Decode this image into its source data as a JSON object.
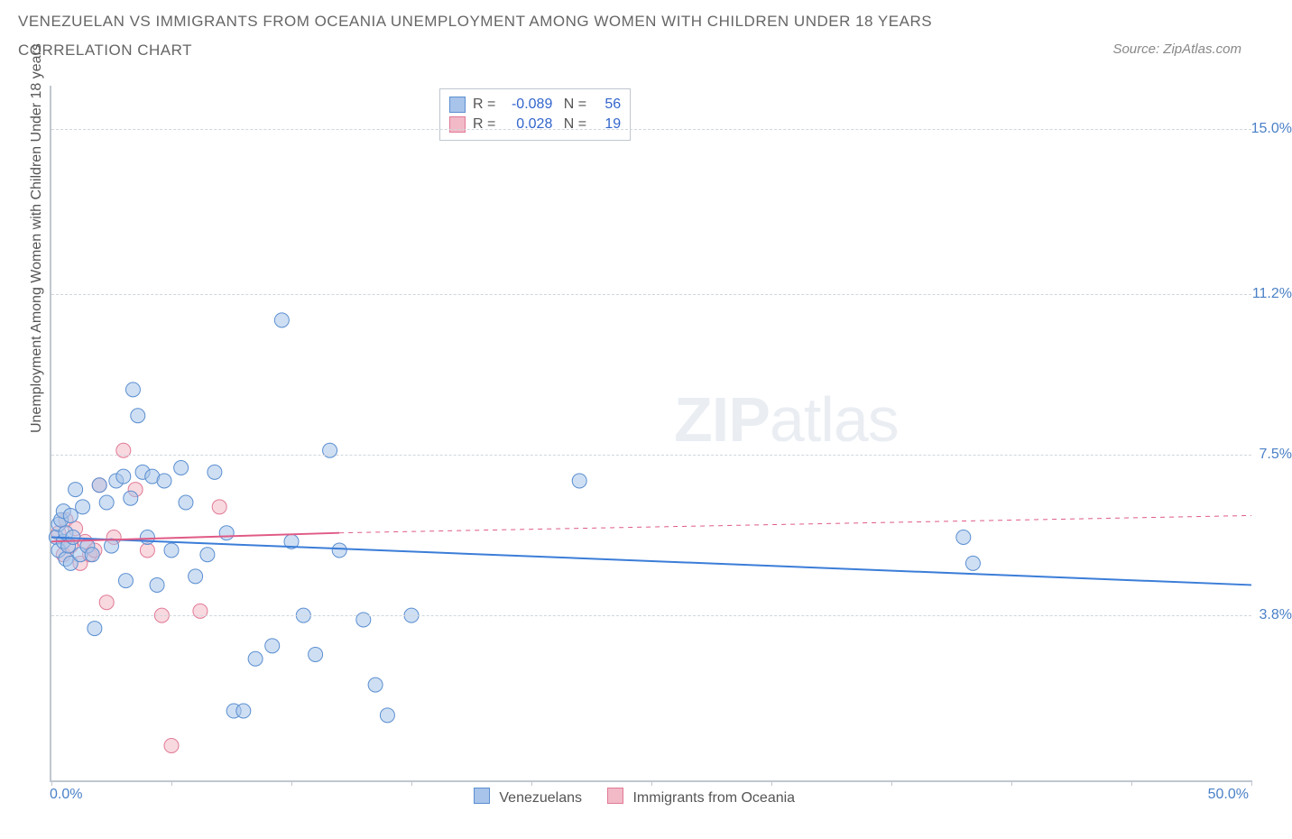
{
  "title_main": "VENEZUELAN VS IMMIGRANTS FROM OCEANIA UNEMPLOYMENT AMONG WOMEN WITH CHILDREN UNDER 18 YEARS",
  "title_sub": "CORRELATION CHART",
  "source": "Source: ZipAtlas.com",
  "ylabel": "Unemployment Among Women with Children Under 18 years",
  "axes": {
    "xmin": 0.0,
    "xmax": 50.0,
    "ymin": 0.0,
    "ymax": 16.0,
    "xticks": [
      0.0,
      5.0,
      10.0,
      15.0,
      20.0,
      25.0,
      30.0,
      35.0,
      40.0,
      45.0,
      50.0
    ],
    "yticks": [
      3.8,
      7.5,
      11.2,
      15.0
    ],
    "xmin_label": "0.0%",
    "xmax_label": "50.0%",
    "ytick_labels": [
      "3.8%",
      "7.5%",
      "11.2%",
      "15.0%"
    ]
  },
  "style": {
    "bg": "#ffffff",
    "grid_color": "#d0d6dc",
    "axis_color": "#bfc7cf",
    "tick_text_color": "#4a80c7",
    "label_color": "#555555",
    "title_color": "#666666",
    "marker_radius": 8,
    "marker_opacity": 0.55,
    "line_width": 2
  },
  "series": {
    "venezuelans": {
      "label": "Venezuelans",
      "fill": "#a8c4ea",
      "stroke": "#5b8fd1",
      "line_color": "#3b7dd8",
      "r": -0.089,
      "n": 56,
      "trend": {
        "x1": 0.0,
        "y1": 5.6,
        "x2": 50.0,
        "y2": 4.5
      },
      "points": [
        [
          0.2,
          5.6
        ],
        [
          0.3,
          5.9
        ],
        [
          0.3,
          5.3
        ],
        [
          0.4,
          6.0
        ],
        [
          0.5,
          5.5
        ],
        [
          0.5,
          6.2
        ],
        [
          0.6,
          5.1
        ],
        [
          0.6,
          5.7
        ],
        [
          0.7,
          5.4
        ],
        [
          0.8,
          6.1
        ],
        [
          0.8,
          5.0
        ],
        [
          0.9,
          5.6
        ],
        [
          1.0,
          6.7
        ],
        [
          1.2,
          5.2
        ],
        [
          1.3,
          6.3
        ],
        [
          1.5,
          5.4
        ],
        [
          1.7,
          5.2
        ],
        [
          1.8,
          3.5
        ],
        [
          2.0,
          6.8
        ],
        [
          2.3,
          6.4
        ],
        [
          2.5,
          5.4
        ],
        [
          2.7,
          6.9
        ],
        [
          3.0,
          7.0
        ],
        [
          3.1,
          4.6
        ],
        [
          3.3,
          6.5
        ],
        [
          3.4,
          9.0
        ],
        [
          3.6,
          8.4
        ],
        [
          3.8,
          7.1
        ],
        [
          4.0,
          5.6
        ],
        [
          4.2,
          7.0
        ],
        [
          4.4,
          4.5
        ],
        [
          4.7,
          6.9
        ],
        [
          5.0,
          5.3
        ],
        [
          5.4,
          7.2
        ],
        [
          5.6,
          6.4
        ],
        [
          6.0,
          4.7
        ],
        [
          6.5,
          5.2
        ],
        [
          6.8,
          7.1
        ],
        [
          7.3,
          5.7
        ],
        [
          7.6,
          1.6
        ],
        [
          8.0,
          1.6
        ],
        [
          8.5,
          2.8
        ],
        [
          9.2,
          3.1
        ],
        [
          9.6,
          10.6
        ],
        [
          10.0,
          5.5
        ],
        [
          10.5,
          3.8
        ],
        [
          11.0,
          2.9
        ],
        [
          11.6,
          7.6
        ],
        [
          12.0,
          5.3
        ],
        [
          13.0,
          3.7
        ],
        [
          13.5,
          2.2
        ],
        [
          14.0,
          1.5
        ],
        [
          15.0,
          3.8
        ],
        [
          22.0,
          6.9
        ],
        [
          38.0,
          5.6
        ],
        [
          38.4,
          5.0
        ]
      ]
    },
    "oceania": {
      "label": "Immigrants from Oceania",
      "fill": "#f2b9c7",
      "stroke": "#e17a96",
      "line_color": "#e05a85",
      "r": 0.028,
      "n": 19,
      "trend_solid": {
        "x1": 0.0,
        "y1": 5.5,
        "x2": 12.0,
        "y2": 5.7
      },
      "trend_dashed": {
        "x1": 12.0,
        "y1": 5.7,
        "x2": 50.0,
        "y2": 6.1
      },
      "points": [
        [
          0.3,
          5.7
        ],
        [
          0.5,
          5.2
        ],
        [
          0.6,
          6.0
        ],
        [
          0.8,
          5.4
        ],
        [
          1.0,
          5.8
        ],
        [
          1.2,
          5.0
        ],
        [
          1.4,
          5.5
        ],
        [
          1.6,
          5.2
        ],
        [
          1.8,
          5.3
        ],
        [
          2.0,
          6.8
        ],
        [
          2.3,
          4.1
        ],
        [
          2.6,
          5.6
        ],
        [
          3.0,
          7.6
        ],
        [
          3.5,
          6.7
        ],
        [
          4.0,
          5.3
        ],
        [
          4.6,
          3.8
        ],
        [
          5.0,
          0.8
        ],
        [
          6.2,
          3.9
        ],
        [
          7.0,
          6.3
        ]
      ]
    }
  },
  "corr_box": {
    "r_label": "R =",
    "n_label": "N =",
    "rows": [
      {
        "swatch_fill": "#a8c4ea",
        "swatch_stroke": "#5b8fd1",
        "r": "-0.089",
        "n": "56"
      },
      {
        "swatch_fill": "#f2b9c7",
        "swatch_stroke": "#e17a96",
        "r": "0.028",
        "n": "19"
      }
    ]
  },
  "watermark_zip": "ZIP",
  "watermark_atlas": "atlas"
}
